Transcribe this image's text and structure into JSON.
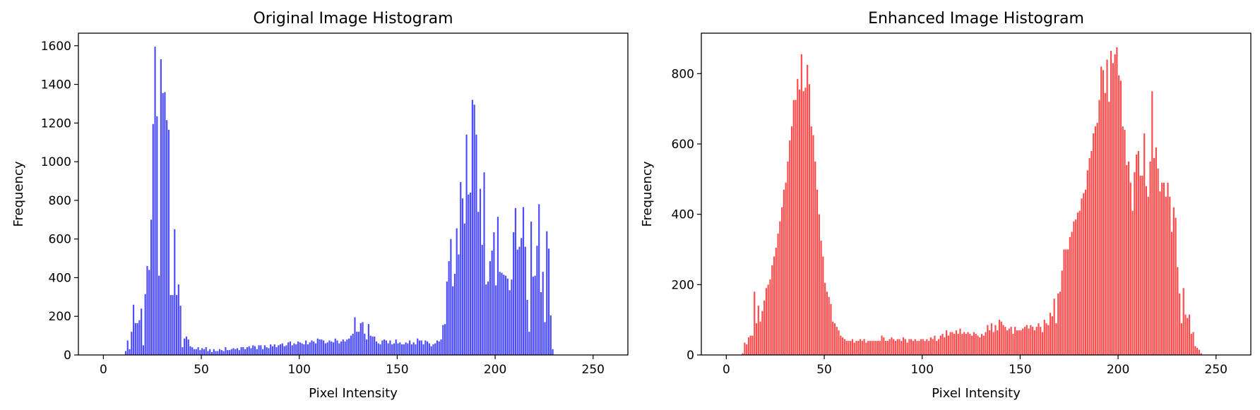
{
  "chart_data": [
    {
      "type": "bar",
      "title": "Original Image Histogram",
      "xlabel": "Pixel Intensity",
      "ylabel": "Frequency",
      "xlim": [
        -12.75,
        267.75
      ],
      "ylim": [
        0,
        1665
      ],
      "xticks": [
        0,
        50,
        100,
        150,
        200,
        250
      ],
      "yticks": [
        0,
        200,
        400,
        600,
        800,
        1000,
        1200,
        1400,
        1600
      ],
      "color": "#4b4bff",
      "series": [
        {
          "start": 11,
          "values": [
            20,
            75,
            30,
            120,
            260,
            165,
            165,
            180,
            240,
            50,
            315,
            460,
            440,
            700,
            1195,
            1595,
            1235,
            410,
            1530,
            1355,
            1360,
            1215,
            1165,
            310,
            310,
            650,
            310,
            365,
            255,
            40,
            85,
            95,
            80,
            45,
            40,
            30,
            30,
            40,
            25,
            35,
            30,
            40,
            20,
            30,
            15,
            30,
            20,
            20,
            30,
            25,
            20,
            40,
            25,
            25,
            30,
            35,
            30,
            35,
            25,
            40,
            40,
            30,
            40,
            45,
            35,
            50,
            45,
            30,
            50,
            50,
            30,
            50,
            40,
            35,
            55,
            45,
            55,
            40,
            50,
            55,
            60,
            45,
            50,
            65,
            70,
            50,
            60,
            55,
            70,
            65,
            60,
            55,
            75,
            55,
            65,
            75,
            70,
            60,
            85,
            80,
            80,
            75,
            60,
            65,
            75,
            70,
            65,
            85,
            75,
            60,
            70,
            80,
            70,
            80,
            85,
            100,
            110,
            195,
            120,
            120,
            165,
            170,
            110,
            80,
            160,
            100,
            95,
            95,
            70,
            60,
            55,
            75,
            80,
            75,
            60,
            75,
            55,
            60,
            80,
            60,
            65,
            55,
            55,
            65,
            60,
            75,
            55,
            65,
            55,
            85,
            75,
            75,
            55,
            75,
            70,
            60,
            45,
            55,
            60,
            75,
            70,
            80,
            155,
            160,
            380,
            485,
            600,
            355,
            420,
            655,
            520,
            895,
            810,
            680,
            1140,
            830,
            840,
            1320,
            1295,
            1140,
            740,
            860,
            570,
            945,
            365,
            380,
            485,
            540,
            635,
            360,
            715,
            430,
            425,
            415,
            410,
            395,
            335,
            390,
            635,
            760,
            545,
            560,
            605,
            765,
            560,
            285,
            120,
            690,
            405,
            410,
            565,
            780,
            325,
            430,
            170,
            640,
            550,
            205,
            30
          ]
        }
      ]
    },
    {
      "type": "bar",
      "title": "Enhanced Image Histogram",
      "xlabel": "Pixel Intensity",
      "ylabel": "Frequency",
      "xlim": [
        -12.75,
        267.75
      ],
      "ylim": [
        0,
        915
      ],
      "xticks": [
        0,
        50,
        100,
        150,
        200,
        250
      ],
      "yticks": [
        0,
        200,
        400,
        600,
        800
      ],
      "color": "#ff4b4b",
      "series": [
        {
          "start": 8,
          "values": [
            5,
            35,
            30,
            50,
            55,
            55,
            180,
            90,
            140,
            95,
            125,
            155,
            190,
            200,
            215,
            255,
            280,
            305,
            345,
            380,
            420,
            470,
            490,
            550,
            610,
            650,
            725,
            725,
            785,
            755,
            855,
            750,
            760,
            825,
            770,
            650,
            625,
            550,
            470,
            400,
            325,
            280,
            205,
            180,
            165,
            145,
            95,
            90,
            80,
            70,
            55,
            50,
            45,
            40,
            40,
            40,
            45,
            35,
            40,
            40,
            45,
            40,
            45,
            35,
            40,
            40,
            40,
            40,
            40,
            40,
            40,
            55,
            50,
            40,
            40,
            45,
            50,
            45,
            40,
            45,
            45,
            40,
            50,
            45,
            35,
            45,
            45,
            40,
            45,
            40,
            40,
            45,
            45,
            40,
            45,
            40,
            50,
            45,
            55,
            40,
            45,
            55,
            60,
            50,
            70,
            55,
            65,
            65,
            60,
            70,
            60,
            75,
            60,
            65,
            60,
            65,
            60,
            55,
            65,
            60,
            55,
            50,
            60,
            55,
            65,
            85,
            70,
            90,
            65,
            85,
            70,
            100,
            95,
            85,
            80,
            70,
            75,
            80,
            60,
            80,
            70,
            70,
            70,
            75,
            80,
            85,
            75,
            85,
            80,
            70,
            80,
            90,
            80,
            65,
            100,
            90,
            85,
            120,
            110,
            160,
            90,
            175,
            180,
            240,
            300,
            300,
            300,
            335,
            350,
            380,
            385,
            405,
            410,
            445,
            460,
            470,
            525,
            560,
            580,
            630,
            650,
            660,
            725,
            820,
            810,
            745,
            840,
            720,
            865,
            830,
            855,
            875,
            795,
            780,
            650,
            640,
            540,
            550,
            490,
            410,
            520,
            570,
            580,
            510,
            510,
            630,
            480,
            450,
            550,
            750,
            560,
            590,
            530,
            465,
            490,
            490,
            450,
            490,
            450,
            350,
            420,
            390,
            250,
            175,
            90,
            190,
            115,
            105,
            115,
            60,
            65,
            25,
            20,
            15,
            5
          ]
        }
      ]
    }
  ]
}
